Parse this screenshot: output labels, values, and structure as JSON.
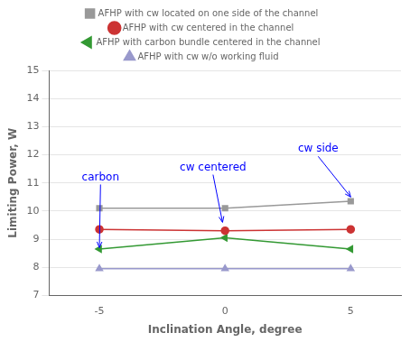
{
  "chart_data": {
    "type": "line",
    "x_label": "Inclination Angle, degree",
    "y_label": "Limiting Power, W",
    "x": [
      -5,
      0,
      5
    ],
    "series": [
      {
        "name": "AFHP with cw located on one side of the channel",
        "color": "#999999",
        "marker": "square",
        "values": [
          10.1,
          10.1,
          10.35
        ]
      },
      {
        "name": "AFHP with cw centered in the channel",
        "color": "#cc3333",
        "marker": "circle",
        "values": [
          9.35,
          9.3,
          9.35
        ]
      },
      {
        "name": "AFHP with carbon bundle centered in the channel",
        "color": "#339933",
        "marker": "triangle_left",
        "values": [
          8.65,
          9.05,
          8.65
        ]
      },
      {
        "name": "AFHP with cw w/o working fluid",
        "color": "#9999cc",
        "marker": "triangle_up",
        "values": [
          7.95,
          7.95,
          7.95
        ]
      }
    ],
    "xlim": [
      -7,
      7
    ],
    "xticks": [
      -5,
      0,
      5
    ],
    "ylim": [
      7,
      15
    ],
    "yticks": [
      7,
      8,
      9,
      10,
      11,
      12,
      13,
      14,
      15
    ],
    "grid": true,
    "legend": "top",
    "annotations": [
      {
        "text": "carbon",
        "x": -5.0,
        "y": 8.7,
        "text_x": -5.7,
        "text_y": 11.2
      },
      {
        "text": "cw centered",
        "x": -0.1,
        "y": 9.6,
        "text_x": -1.8,
        "text_y": 11.55
      },
      {
        "text": "cw side",
        "x": 5.0,
        "y": 10.5,
        "text_x": 2.9,
        "text_y": 12.2
      }
    ]
  }
}
